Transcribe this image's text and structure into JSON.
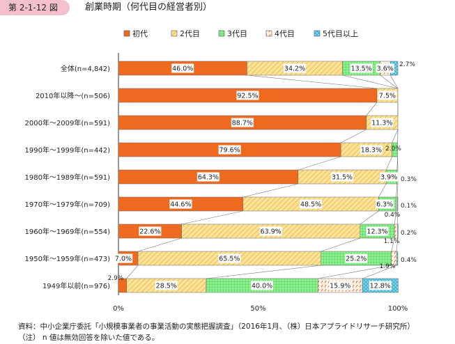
{
  "figure": {
    "number": "第 2-1-12 図",
    "title": "創業時期（何代目の経営者別）"
  },
  "chart_data": {
    "type": "bar",
    "orientation": "horizontal",
    "stacked": true,
    "percent_stacked": true,
    "legend_position": "top",
    "xlim": [
      0,
      100
    ],
    "x_ticks": [
      "0%",
      "50%",
      "100%"
    ],
    "categories": [
      "全体(n=4,842)",
      "2010年以降～(n=506)",
      "2000年～2009年(n=591)",
      "1990年～1999年(n=442)",
      "1980年～1989年(n=591)",
      "1970年～1979年(n=709)",
      "1960年～1969年(n=554)",
      "1950年～1959年(n=473)",
      "1949年以前(n=976)"
    ],
    "series": [
      {
        "name": "初代",
        "color": "#ee6a1e",
        "pattern": "solid",
        "values": [
          46.0,
          92.5,
          88.7,
          79.6,
          64.3,
          44.6,
          22.6,
          7.0,
          2.9
        ]
      },
      {
        "name": "2代目",
        "color": "#fbe299",
        "pattern": "diagonal",
        "values": [
          34.2,
          7.5,
          11.3,
          18.3,
          31.5,
          48.5,
          63.9,
          65.5,
          28.5
        ]
      },
      {
        "name": "3代目",
        "color": "#8ef08e",
        "pattern": "grid",
        "values": [
          13.5,
          0,
          0,
          2.0,
          3.9,
          6.3,
          12.3,
          25.2,
          40.0
        ]
      },
      {
        "name": "4代目",
        "color": "#ffd9c2",
        "pattern": "dashes",
        "values": [
          3.6,
          0,
          0,
          0,
          0.3,
          0.4,
          1.1,
          1.9,
          15.9
        ]
      },
      {
        "name": "5代目以上",
        "color": "#7fd6ea",
        "pattern": "cross",
        "values": [
          2.7,
          0,
          0,
          0,
          0,
          0.1,
          0.2,
          0.4,
          12.8
        ]
      }
    ],
    "value_labels": [
      [
        "46.0%",
        "34.2%",
        "13.5%",
        "3.6%",
        "2.7%"
      ],
      [
        "92.5%",
        "7.5%",
        "",
        "",
        ""
      ],
      [
        "88.7%",
        "11.3%",
        "",
        "",
        ""
      ],
      [
        "79.6%",
        "18.3%",
        "2.0%",
        "",
        ""
      ],
      [
        "64.3%",
        "31.5%",
        "3.9%",
        "0.3%",
        ""
      ],
      [
        "44.6%",
        "48.5%",
        "6.3%",
        "0.4%",
        "0.1%"
      ],
      [
        "22.6%",
        "63.9%",
        "12.3%",
        "1.1%",
        "0.2%"
      ],
      [
        "7.0%",
        "65.5%",
        "25.2%",
        "1.9%",
        "0.4%"
      ],
      [
        "2.9%",
        "28.5%",
        "40.0%",
        "15.9%",
        "12.8%"
      ]
    ]
  },
  "notes": {
    "source": "資料：中小企業庁委託「小規模事業者の事業活動の実態把握調査」（2016年1月、（株）日本アプライドリサーチ研究所）",
    "remark": "（注）  n 値は無効回答を除いた値である。"
  }
}
